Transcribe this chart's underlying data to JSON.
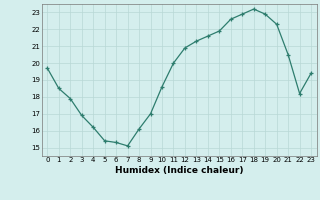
{
  "x": [
    0,
    1,
    2,
    3,
    4,
    5,
    6,
    7,
    8,
    9,
    10,
    11,
    12,
    13,
    14,
    15,
    16,
    17,
    18,
    19,
    20,
    21,
    22,
    23
  ],
  "y": [
    19.7,
    18.5,
    17.9,
    16.9,
    16.2,
    15.4,
    15.3,
    15.1,
    16.1,
    17.0,
    18.6,
    20.0,
    20.9,
    21.3,
    21.6,
    21.9,
    22.6,
    22.9,
    23.2,
    22.9,
    22.3,
    20.5,
    18.2,
    19.4
  ],
  "xlabel": "Humidex (Indice chaleur)",
  "xlim": [
    -0.5,
    23.5
  ],
  "ylim": [
    14.5,
    23.5
  ],
  "yticks": [
    15,
    16,
    17,
    18,
    19,
    20,
    21,
    22,
    23
  ],
  "xticks": [
    0,
    1,
    2,
    3,
    4,
    5,
    6,
    7,
    8,
    9,
    10,
    11,
    12,
    13,
    14,
    15,
    16,
    17,
    18,
    19,
    20,
    21,
    22,
    23
  ],
  "line_color": "#2e7d6e",
  "marker": "+",
  "bg_color": "#d4eeed",
  "grid_color": "#b8d8d5",
  "axis_bg": "#d4eeed",
  "tick_label_fontsize": 5,
  "xlabel_fontsize": 6.5,
  "xlabel_fontweight": "bold"
}
